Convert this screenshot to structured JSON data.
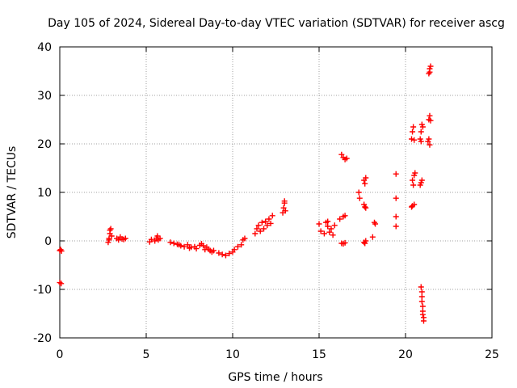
{
  "chart_data": {
    "type": "scatter",
    "title": "Day 105 of 2024, Sidereal Day-to-day VTEC variation (SDTVAR) for receiver ascg",
    "xlabel": "GPS time / hours",
    "ylabel": "SDTVAR / TECUs",
    "xlim": [
      0,
      25
    ],
    "ylim": [
      -20,
      40
    ],
    "xticks": [
      0,
      5,
      10,
      15,
      20,
      25
    ],
    "yticks": [
      -20,
      -10,
      0,
      10,
      20,
      30,
      40
    ],
    "grid": true,
    "marker": "+",
    "color": "#ff0000",
    "series": [
      {
        "name": "SDTVAR",
        "points": [
          [
            0.0,
            -2.0
          ],
          [
            0.05,
            -1.8
          ],
          [
            0.1,
            -2.1
          ],
          [
            0.0,
            -8.6
          ],
          [
            0.08,
            -8.8
          ],
          [
            2.8,
            -0.3
          ],
          [
            2.85,
            0.5
          ],
          [
            2.9,
            1.5
          ],
          [
            2.95,
            2.5
          ],
          [
            2.9,
            2.2
          ],
          [
            3.0,
            1.0
          ],
          [
            2.85,
            0.2
          ],
          [
            3.3,
            0.5
          ],
          [
            3.4,
            0.2
          ],
          [
            3.5,
            0.8
          ],
          [
            3.6,
            0.4
          ],
          [
            3.7,
            0.3
          ],
          [
            3.8,
            0.5
          ],
          [
            5.2,
            -0.2
          ],
          [
            5.3,
            0.3
          ],
          [
            5.5,
            0.0
          ],
          [
            5.6,
            0.6
          ],
          [
            5.65,
            1.0
          ],
          [
            5.7,
            0.2
          ],
          [
            5.8,
            0.5
          ],
          [
            6.4,
            -0.3
          ],
          [
            6.6,
            -0.5
          ],
          [
            6.8,
            -0.7
          ],
          [
            6.9,
            -0.8
          ],
          [
            7.0,
            -1.0
          ],
          [
            7.2,
            -1.2
          ],
          [
            7.4,
            -0.8
          ],
          [
            7.5,
            -1.5
          ],
          [
            7.6,
            -1.3
          ],
          [
            7.8,
            -1.2
          ],
          [
            7.9,
            -1.6
          ],
          [
            8.1,
            -0.9
          ],
          [
            8.2,
            -0.6
          ],
          [
            8.3,
            -1.0
          ],
          [
            8.4,
            -1.8
          ],
          [
            8.5,
            -1.3
          ],
          [
            8.6,
            -1.7
          ],
          [
            8.7,
            -2.0
          ],
          [
            8.8,
            -2.3
          ],
          [
            8.9,
            -2.0
          ],
          [
            9.2,
            -2.5
          ],
          [
            9.4,
            -2.8
          ],
          [
            9.6,
            -3.0
          ],
          [
            9.8,
            -2.6
          ],
          [
            10.0,
            -2.3
          ],
          [
            10.1,
            -1.8
          ],
          [
            10.3,
            -1.2
          ],
          [
            10.5,
            -0.8
          ],
          [
            10.6,
            0.2
          ],
          [
            10.7,
            0.5
          ],
          [
            11.3,
            1.5
          ],
          [
            11.4,
            2.5
          ],
          [
            11.5,
            3.2
          ],
          [
            11.6,
            2.0
          ],
          [
            11.7,
            3.8
          ],
          [
            11.8,
            2.5
          ],
          [
            11.9,
            4.0
          ],
          [
            12.0,
            3.2
          ],
          [
            12.1,
            4.5
          ],
          [
            12.2,
            3.6
          ],
          [
            12.3,
            5.2
          ],
          [
            12.9,
            5.8
          ],
          [
            12.95,
            6.8
          ],
          [
            13.0,
            7.8
          ],
          [
            13.05,
            6.2
          ],
          [
            13.0,
            8.2
          ],
          [
            15.0,
            3.5
          ],
          [
            15.1,
            2.0
          ],
          [
            15.3,
            1.5
          ],
          [
            15.4,
            3.8
          ],
          [
            15.5,
            3.0
          ],
          [
            15.5,
            4.0
          ],
          [
            15.6,
            1.8
          ],
          [
            15.7,
            2.5
          ],
          [
            15.8,
            1.2
          ],
          [
            15.9,
            3.2
          ],
          [
            16.2,
            4.5
          ],
          [
            16.4,
            5.0
          ],
          [
            16.5,
            5.2
          ],
          [
            16.3,
            -0.5
          ],
          [
            16.4,
            -0.6
          ],
          [
            16.5,
            -0.4
          ],
          [
            16.3,
            17.8
          ],
          [
            16.4,
            17.2
          ],
          [
            16.5,
            16.8
          ],
          [
            16.6,
            17.0
          ],
          [
            17.3,
            10.0
          ],
          [
            17.35,
            8.8
          ],
          [
            17.6,
            12.5
          ],
          [
            17.7,
            13.0
          ],
          [
            17.65,
            11.8
          ],
          [
            17.6,
            7.5
          ],
          [
            17.7,
            6.8
          ],
          [
            17.65,
            7.0
          ],
          [
            17.6,
            -0.3
          ],
          [
            17.7,
            0.0
          ],
          [
            17.65,
            -0.5
          ],
          [
            18.1,
            0.8
          ],
          [
            18.2,
            3.8
          ],
          [
            18.25,
            3.5
          ],
          [
            19.45,
            13.8
          ],
          [
            19.45,
            8.8
          ],
          [
            19.45,
            5.0
          ],
          [
            19.45,
            3.0
          ],
          [
            20.35,
            7.0
          ],
          [
            20.4,
            7.2
          ],
          [
            20.5,
            7.5
          ],
          [
            20.4,
            12.5
          ],
          [
            20.5,
            13.5
          ],
          [
            20.55,
            14.0
          ],
          [
            20.45,
            11.5
          ],
          [
            20.35,
            21.0
          ],
          [
            20.4,
            22.5
          ],
          [
            20.45,
            23.5
          ],
          [
            20.5,
            20.8
          ],
          [
            20.9,
            12.0
          ],
          [
            20.95,
            12.5
          ],
          [
            20.85,
            11.5
          ],
          [
            20.85,
            21.0
          ],
          [
            20.9,
            22.5
          ],
          [
            20.95,
            24.0
          ],
          [
            21.0,
            23.5
          ],
          [
            20.9,
            20.5
          ],
          [
            20.9,
            -9.5
          ],
          [
            20.95,
            -10.5
          ],
          [
            20.95,
            -11.5
          ],
          [
            20.95,
            -12.5
          ],
          [
            21.0,
            -13.5
          ],
          [
            21.0,
            -14.5
          ],
          [
            21.0,
            -15.2
          ],
          [
            21.05,
            -15.8
          ],
          [
            21.05,
            -16.5
          ],
          [
            21.3,
            20.5
          ],
          [
            21.35,
            21.0
          ],
          [
            21.4,
            19.8
          ],
          [
            21.35,
            25.0
          ],
          [
            21.4,
            25.8
          ],
          [
            21.45,
            24.8
          ],
          [
            21.35,
            34.5
          ],
          [
            21.4,
            35.5
          ],
          [
            21.45,
            36.0
          ],
          [
            21.4,
            34.8
          ]
        ]
      }
    ]
  }
}
